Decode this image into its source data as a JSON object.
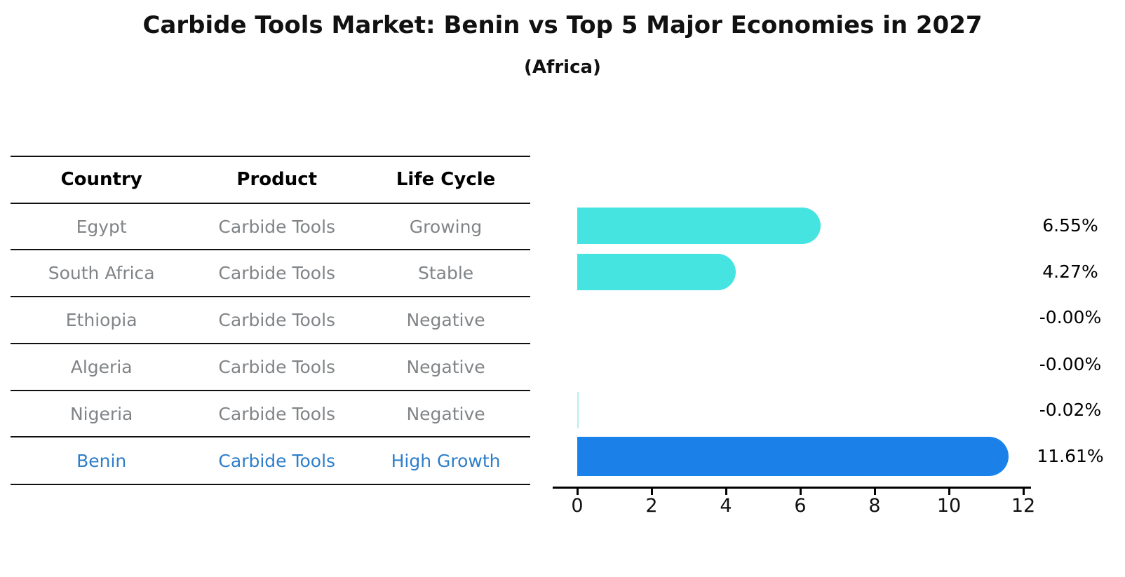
{
  "title": "Carbide Tools Market: Benin vs Top 5 Major Economies in 2027",
  "subtitle": "(Africa)",
  "table": {
    "headers": [
      "Country",
      "Product",
      "Life Cycle"
    ],
    "rows": [
      {
        "country": "Egypt",
        "product": "Carbide Tools",
        "life_cycle": "Growing",
        "highlight": false
      },
      {
        "country": "South Africa",
        "product": "Carbide Tools",
        "life_cycle": "Stable",
        "highlight": false
      },
      {
        "country": "Ethiopia",
        "product": "Carbide Tools",
        "life_cycle": "Negative",
        "highlight": false
      },
      {
        "country": "Algeria",
        "product": "Carbide Tools",
        "life_cycle": "Negative",
        "highlight": false
      },
      {
        "country": "Nigeria",
        "product": "Carbide Tools",
        "life_cycle": "Negative",
        "highlight": false
      },
      {
        "country": "Benin",
        "product": "Carbide Tools",
        "life_cycle": "High Growth",
        "highlight": true
      }
    ]
  },
  "chart_data": {
    "type": "bar",
    "orientation": "horizontal",
    "title": "Carbide Tools Market: Benin vs Top 5 Major Economies in 2027",
    "subtitle": "(Africa)",
    "categories": [
      "Egypt",
      "South Africa",
      "Ethiopia",
      "Algeria",
      "Nigeria",
      "Benin"
    ],
    "values": [
      6.55,
      4.27,
      -0.0,
      -0.0,
      -0.02,
      11.61
    ],
    "value_labels": [
      "6.55%",
      "4.27%",
      "-0.00%",
      "-0.00%",
      "-0.02%",
      "11.61%"
    ],
    "xlabel": "",
    "ylabel": "",
    "xlim": [
      0,
      12
    ],
    "xticks": [
      0,
      2,
      4,
      6,
      8,
      10,
      12
    ],
    "grid": false,
    "legend": false,
    "highlight_category": "Benin"
  },
  "colors": {
    "bar_default": "#45e4e0",
    "bar_thin": "#8ceae5",
    "bar_highlight": "#1b80e8",
    "bar_highlight_edge": "#1586ee",
    "row_text": "#818487",
    "highlight_text": "#2e7ec9",
    "header_text": "#000000",
    "axis": "#000000",
    "value_label_color": "#000000"
  }
}
